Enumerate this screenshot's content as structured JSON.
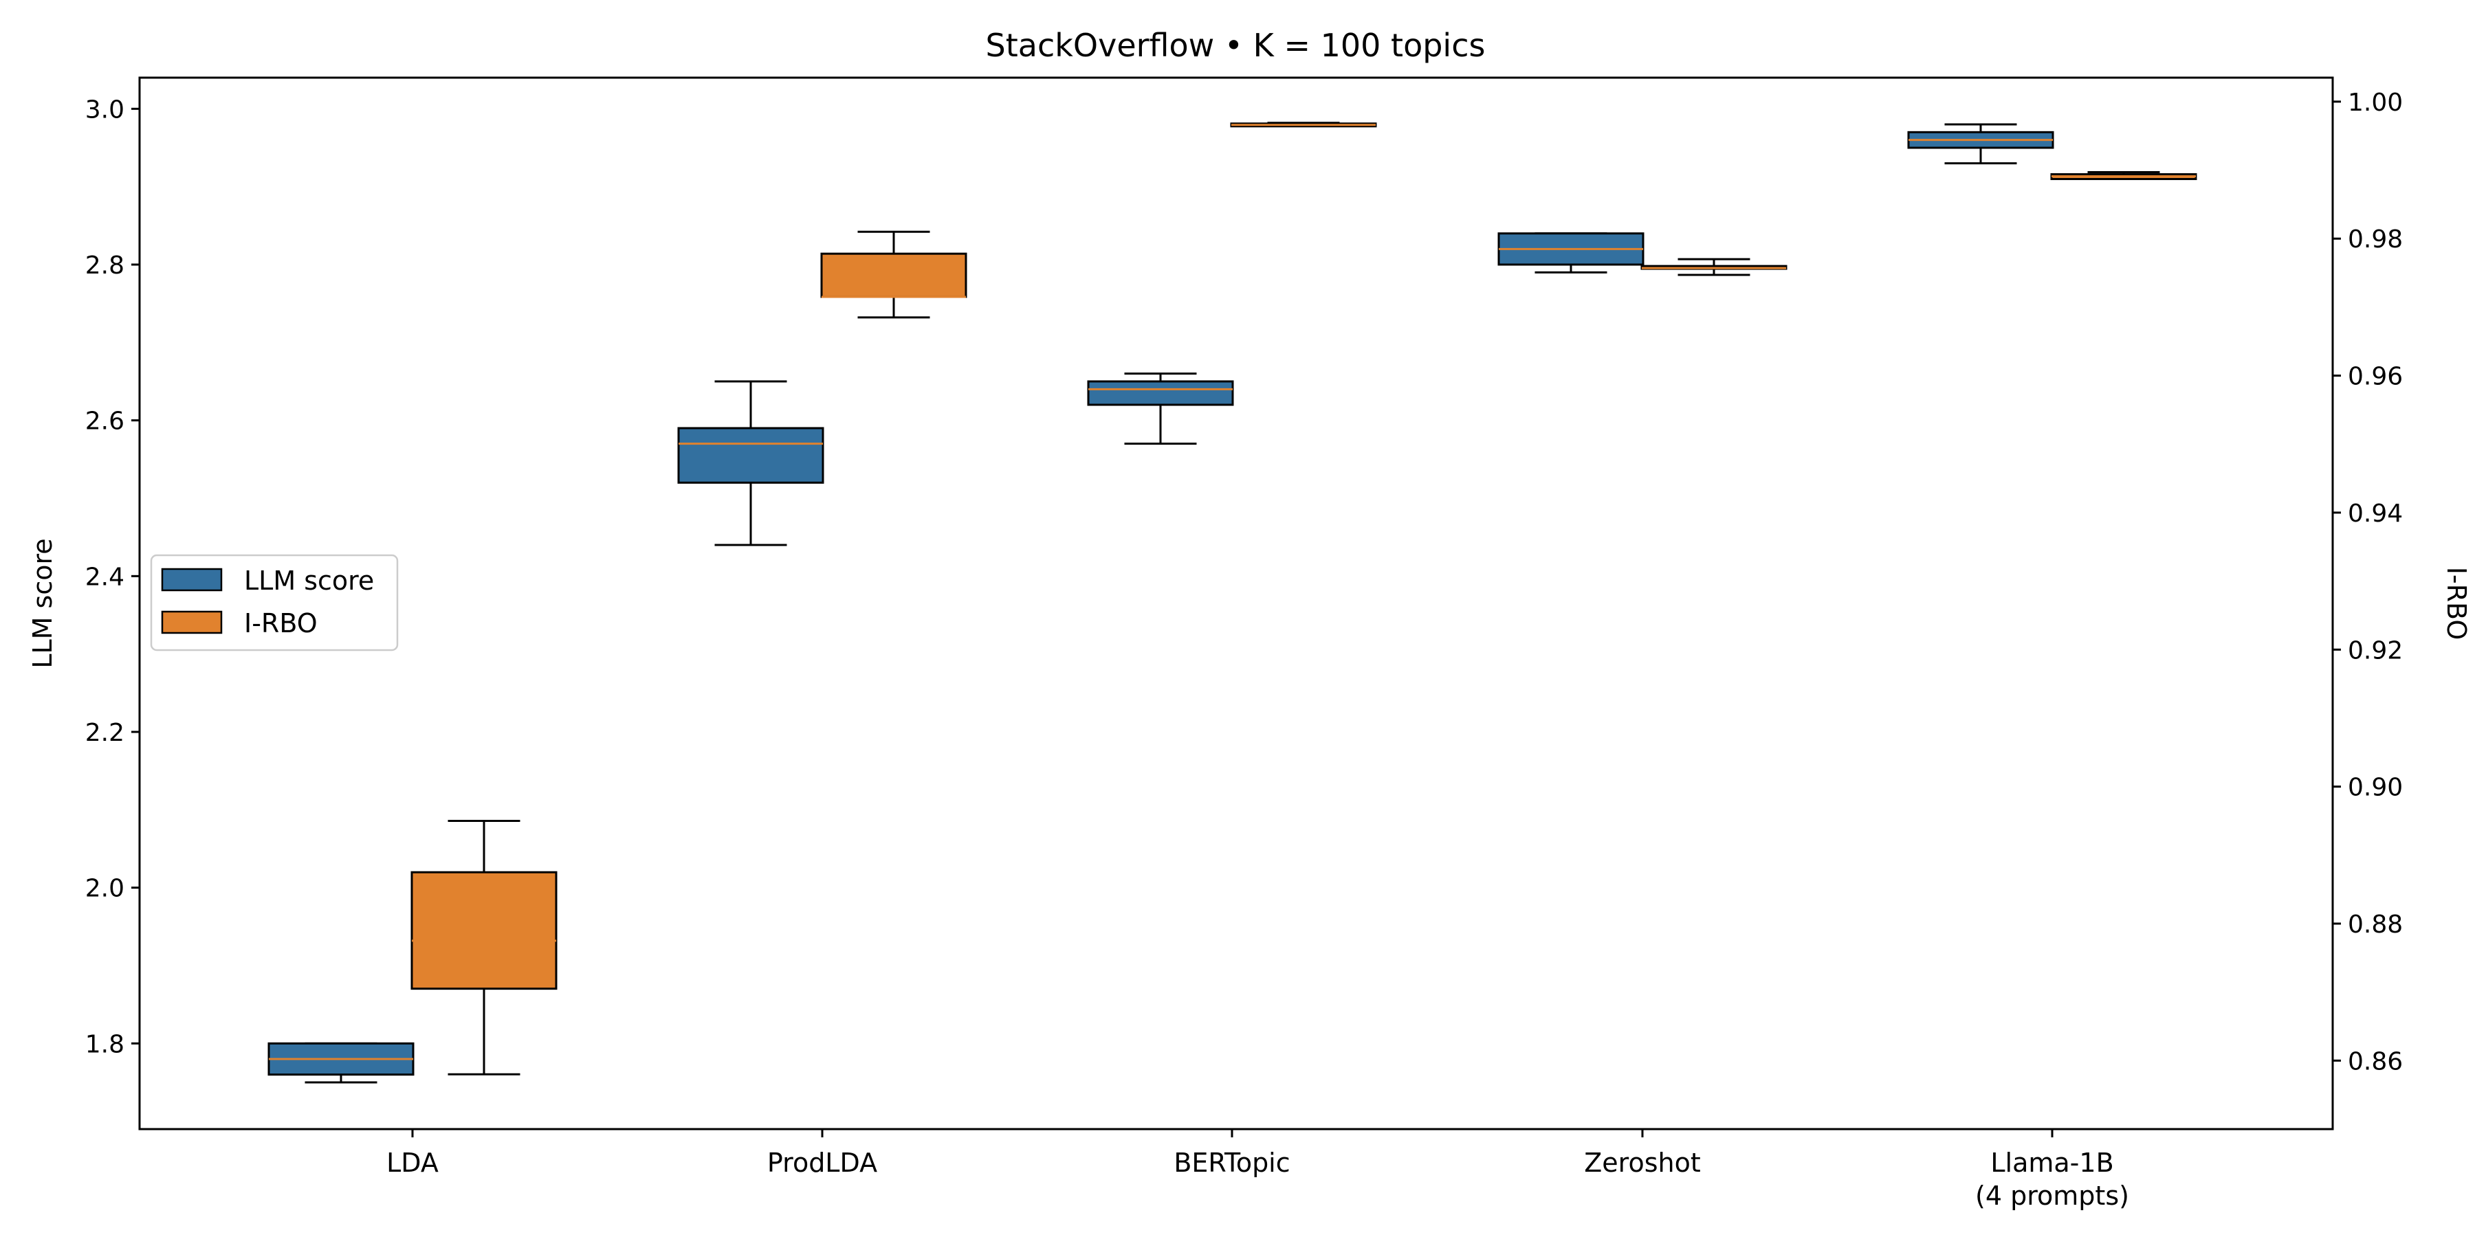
{
  "chart_data": {
    "type": "boxplot",
    "title": "StackOverflow • K = 100 topics",
    "xlabel": "",
    "ylabel_left": "LLM score",
    "ylabel_right": "I-RBO",
    "categories": [
      {
        "label": "LDA",
        "label2": ""
      },
      {
        "label": "ProdLDA",
        "label2": ""
      },
      {
        "label": "BERTopic",
        "label2": ""
      },
      {
        "label": "Zeroshot",
        "label2": ""
      },
      {
        "label": "Llama-1B",
        "label2": "(4 prompts)"
      }
    ],
    "ylim_left": [
      1.69,
      3.04
    ],
    "ylim_right": [
      0.85,
      1.0035
    ],
    "yticks_left": [
      "1.8",
      "2.0",
      "2.2",
      "2.4",
      "2.6",
      "2.8",
      "3.0"
    ],
    "yticks_right": [
      "0.86",
      "0.88",
      "0.90",
      "0.92",
      "0.94",
      "0.96",
      "0.98",
      "1.00"
    ],
    "legend_position": "center-left",
    "series": [
      {
        "name": "LLM score",
        "axis": "left",
        "color": "#33709F",
        "boxes": [
          {
            "whislo": 1.75,
            "q1": 1.76,
            "med": 1.78,
            "q3": 1.8,
            "whishi": 1.8
          },
          {
            "whislo": 2.44,
            "q1": 2.52,
            "med": 2.57,
            "q3": 2.59,
            "whishi": 2.65
          },
          {
            "whislo": 2.57,
            "q1": 2.62,
            "med": 2.64,
            "q3": 2.65,
            "whishi": 2.66
          },
          {
            "whislo": 2.79,
            "q1": 2.8,
            "med": 2.82,
            "q3": 2.84,
            "whishi": 2.84
          },
          {
            "whislo": 2.93,
            "q1": 2.95,
            "med": 2.96,
            "q3": 2.97,
            "whishi": 2.98
          }
        ]
      },
      {
        "name": "I-RBO",
        "axis": "right",
        "color": "#E1822E",
        "boxes": [
          {
            "whislo": 0.858,
            "q1": 0.8705,
            "med": 0.8775,
            "q3": 0.8875,
            "whishi": 0.895
          },
          {
            "whislo": 0.9685,
            "q1": 0.9715,
            "med": 0.9715,
            "q3": 0.9778,
            "whishi": 0.981
          },
          {
            "whislo": 0.9965,
            "q1": 0.9965,
            "med": 0.9966,
            "q3": 0.9968,
            "whishi": 0.9969
          },
          {
            "whislo": 0.9747,
            "q1": 0.9757,
            "med": 0.9757,
            "q3": 0.976,
            "whishi": 0.977
          },
          {
            "whislo": 0.9887,
            "q1": 0.9887,
            "med": 0.9891,
            "q3": 0.9894,
            "whishi": 0.9897
          }
        ]
      }
    ],
    "median_color": "#E1822E",
    "grid": false
  }
}
